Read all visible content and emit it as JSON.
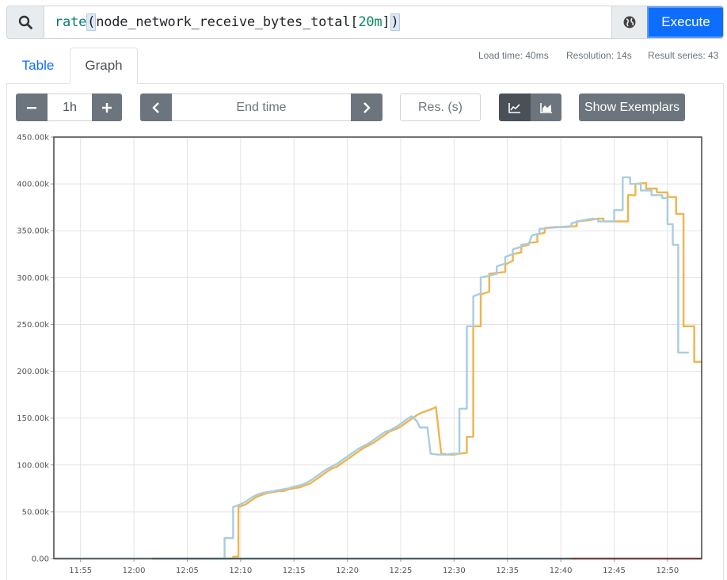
{
  "query": {
    "fn": "rate",
    "open_paren": "(",
    "metric": "node_network_receive_bytes_total",
    "range_open": "[",
    "range": "20m",
    "range_close": "]",
    "close_paren": ")",
    "execute_label": "Execute"
  },
  "tabs": [
    {
      "label": "Table"
    },
    {
      "label": "Graph"
    }
  ],
  "stats": {
    "load_time": "Load time: 40ms",
    "resolution": "Resolution: 14s",
    "result_series": "Result series: 43"
  },
  "controls": {
    "range_value": "1h",
    "end_time_placeholder": "End time",
    "resolution_placeholder": "Res. (s)",
    "exemplars_label": "Show Exemplars"
  },
  "colors": {
    "accent": "#0d6efd",
    "series_orange": "#edb54e",
    "series_blue": "#a9cde0",
    "series_red": "#c74a48",
    "series_teal": "#70a0b4"
  },
  "chart_data": {
    "type": "line",
    "y_tick_labels": [
      "0.00",
      "50.00k",
      "100.00k",
      "150.00k",
      "200.00k",
      "250.00k",
      "300.00k",
      "350.00k",
      "400.00k",
      "450.00k"
    ],
    "x_tick_labels": [
      "11:55",
      "12:00",
      "12:05",
      "12:10",
      "12:15",
      "12:20",
      "12:25",
      "12:30",
      "12:35",
      "12:40",
      "12:45",
      "12:50"
    ],
    "ylim": [
      0,
      450000
    ],
    "xlim_minutes": [
      -7.5,
      53.2
    ],
    "grid": true,
    "series": [
      {
        "color": "#edb54e",
        "points": [
          [
            -7.5,
            0
          ],
          [
            9.3,
            0
          ],
          [
            9.3,
            2000
          ],
          [
            9.8,
            2000
          ],
          [
            9.8,
            55000
          ],
          [
            10.5,
            58000
          ],
          [
            11,
            62000
          ],
          [
            11.5,
            66000
          ],
          [
            12,
            68000
          ],
          [
            12.5,
            70000
          ],
          [
            13,
            71000
          ],
          [
            13.5,
            72000
          ],
          [
            14,
            72000
          ],
          [
            14.5,
            74000
          ],
          [
            15,
            75000
          ],
          [
            15.5,
            76000
          ],
          [
            16,
            78000
          ],
          [
            16.5,
            80000
          ],
          [
            17,
            84000
          ],
          [
            17.5,
            88000
          ],
          [
            18,
            92000
          ],
          [
            18.5,
            96000
          ],
          [
            19,
            98000
          ],
          [
            19.5,
            102000
          ],
          [
            20,
            106000
          ],
          [
            20.5,
            110000
          ],
          [
            21,
            114000
          ],
          [
            21.5,
            118000
          ],
          [
            22,
            121000
          ],
          [
            22.5,
            124000
          ],
          [
            23,
            128000
          ],
          [
            23.5,
            132000
          ],
          [
            24,
            136000
          ],
          [
            24.5,
            138000
          ],
          [
            25,
            141000
          ],
          [
            25.5,
            145000
          ],
          [
            26,
            149000
          ],
          [
            26.5,
            153000
          ],
          [
            27,
            156000
          ],
          [
            27.5,
            158000
          ],
          [
            28,
            160000
          ],
          [
            28.3,
            162000
          ],
          [
            28.8,
            112000
          ],
          [
            29.5,
            111000
          ],
          [
            30,
            111000
          ],
          [
            30.5,
            112000
          ],
          [
            31.2,
            113000
          ],
          [
            31.2,
            130000
          ],
          [
            31.8,
            130000
          ],
          [
            31.8,
            248000
          ],
          [
            32.5,
            248000
          ],
          [
            32.5,
            282000
          ],
          [
            33.3,
            285000
          ],
          [
            33.3,
            304000
          ],
          [
            34,
            305000
          ],
          [
            34.8,
            306000
          ],
          [
            34.8,
            314000
          ],
          [
            35.5,
            318000
          ],
          [
            35.5,
            325000
          ],
          [
            36.3,
            327000
          ],
          [
            36.3,
            333000
          ],
          [
            37,
            335000
          ],
          [
            37,
            337000
          ],
          [
            37.8,
            338000
          ],
          [
            37.8,
            346000
          ],
          [
            38.5,
            348000
          ],
          [
            38.5,
            353000
          ],
          [
            39.5,
            354000
          ],
          [
            40.5,
            354000
          ],
          [
            41.5,
            355000
          ],
          [
            41.5,
            360000
          ],
          [
            42.5,
            361000
          ],
          [
            43.5,
            363000
          ],
          [
            44,
            363000
          ],
          [
            44,
            360000
          ],
          [
            46.3,
            360000
          ],
          [
            46.3,
            388000
          ],
          [
            47,
            388000
          ],
          [
            47,
            400000
          ],
          [
            48,
            401000
          ],
          [
            48,
            395000
          ],
          [
            49,
            395000
          ],
          [
            49,
            391000
          ],
          [
            50,
            391000
          ],
          [
            50,
            386000
          ],
          [
            50.8,
            386000
          ],
          [
            50.8,
            368000
          ],
          [
            51.5,
            368000
          ],
          [
            51.5,
            248000
          ],
          [
            52.5,
            248000
          ],
          [
            52.5,
            210000
          ],
          [
            53.2,
            210000
          ]
        ]
      },
      {
        "color": "#a9cde0",
        "points": [
          [
            -7.5,
            0
          ],
          [
            8.5,
            0
          ],
          [
            8.5,
            22000
          ],
          [
            9.3,
            22000
          ],
          [
            9.3,
            55000
          ],
          [
            10,
            58000
          ],
          [
            10.5,
            61000
          ],
          [
            11,
            65000
          ],
          [
            11.5,
            68000
          ],
          [
            12,
            70000
          ],
          [
            12.5,
            71000
          ],
          [
            13,
            72000
          ],
          [
            13.5,
            73000
          ],
          [
            14,
            74000
          ],
          [
            14.5,
            75000
          ],
          [
            15,
            77000
          ],
          [
            15.5,
            78000
          ],
          [
            16,
            80000
          ],
          [
            16.5,
            83000
          ],
          [
            17,
            87000
          ],
          [
            17.5,
            91000
          ],
          [
            18,
            95000
          ],
          [
            18.5,
            98000
          ],
          [
            19,
            101000
          ],
          [
            19.5,
            105000
          ],
          [
            20,
            109000
          ],
          [
            20.5,
            113000
          ],
          [
            21,
            117000
          ],
          [
            21.5,
            120000
          ],
          [
            22,
            123000
          ],
          [
            22.5,
            127000
          ],
          [
            23,
            131000
          ],
          [
            23.5,
            135000
          ],
          [
            24,
            137000
          ],
          [
            24.5,
            140000
          ],
          [
            25,
            144000
          ],
          [
            25.5,
            148000
          ],
          [
            26,
            152000
          ],
          [
            26.5,
            147000
          ],
          [
            26.8,
            140000
          ],
          [
            27.5,
            140000
          ],
          [
            27.8,
            112000
          ],
          [
            28.5,
            111000
          ],
          [
            29.3,
            111000
          ],
          [
            29.8,
            112000
          ],
          [
            30.5,
            112000
          ],
          [
            30.5,
            160000
          ],
          [
            31.2,
            160000
          ],
          [
            31.2,
            248000
          ],
          [
            31.8,
            248000
          ],
          [
            31.8,
            280000
          ],
          [
            32.5,
            283000
          ],
          [
            32.5,
            300000
          ],
          [
            33.3,
            302000
          ],
          [
            34,
            304000
          ],
          [
            34,
            312000
          ],
          [
            34.8,
            315000
          ],
          [
            34.8,
            322000
          ],
          [
            35.5,
            325000
          ],
          [
            35.5,
            330000
          ],
          [
            36.3,
            333000
          ],
          [
            36.3,
            335000
          ],
          [
            37,
            336000
          ],
          [
            37.3,
            345000
          ],
          [
            38,
            347000
          ],
          [
            38,
            352000
          ],
          [
            39,
            353000
          ],
          [
            40,
            354000
          ],
          [
            41,
            355000
          ],
          [
            41,
            358000
          ],
          [
            42,
            361000
          ],
          [
            43,
            363000
          ],
          [
            43.5,
            362000
          ],
          [
            43.5,
            360000
          ],
          [
            45,
            360000
          ],
          [
            45,
            372000
          ],
          [
            45.8,
            372000
          ],
          [
            45.8,
            407000
          ],
          [
            46.5,
            407000
          ],
          [
            46.5,
            400000
          ],
          [
            47.5,
            400000
          ],
          [
            47.5,
            393000
          ],
          [
            48.5,
            393000
          ],
          [
            48.5,
            388000
          ],
          [
            49.5,
            388000
          ],
          [
            49.5,
            385000
          ],
          [
            50,
            385000
          ],
          [
            50,
            357000
          ],
          [
            50.5,
            357000
          ],
          [
            50.5,
            335000
          ],
          [
            51,
            335000
          ],
          [
            51,
            220000
          ],
          [
            52,
            220000
          ]
        ]
      },
      {
        "color": "#70a0b4",
        "points": [
          [
            1.7,
            0
          ],
          [
            41,
            0
          ]
        ]
      },
      {
        "color": "#c74a48",
        "points": [
          [
            41,
            0
          ],
          [
            53.2,
            0
          ]
        ]
      }
    ]
  }
}
